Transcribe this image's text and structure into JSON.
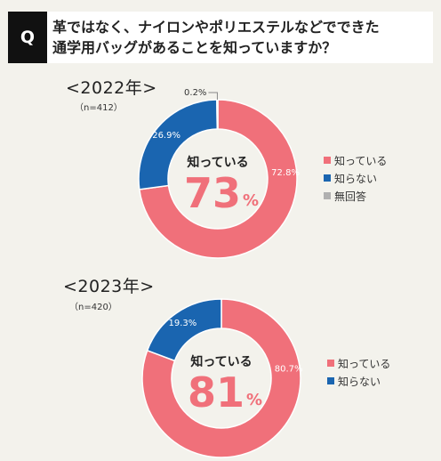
{
  "question": {
    "badge": "Q",
    "line1": "革ではなく、ナイロンやポリエステルなどでできた",
    "line2": "通学用バッグがあることを知っていますか？"
  },
  "colors": {
    "know": "#f0707a",
    "dont_know": "#1a65b0",
    "no_answer": "#b0b0b0"
  },
  "chart_data": [
    {
      "type": "pie",
      "title": "<2022年>",
      "sample": "（n=412）",
      "center_label": "知っている",
      "center_value": "73",
      "center_unit": "%",
      "series": [
        {
          "name": "知っている",
          "value": 72.8,
          "label": "72.8%"
        },
        {
          "name": "知らない",
          "value": 26.9,
          "label": "26.9%"
        },
        {
          "name": "無回答",
          "value": 0.2,
          "label": "0.2%"
        }
      ],
      "legend": [
        "知っている",
        "知らない",
        "無回答"
      ],
      "legend_position": "right"
    },
    {
      "type": "pie",
      "title": "<2023年>",
      "sample": "（n=420）",
      "center_label": "知っている",
      "center_value": "81",
      "center_unit": "%",
      "series": [
        {
          "name": "知っている",
          "value": 80.7,
          "label": "80.7%"
        },
        {
          "name": "知らない",
          "value": 19.3,
          "label": "19.3%"
        }
      ],
      "legend": [
        "知っている",
        "知らない"
      ],
      "legend_position": "right"
    }
  ]
}
